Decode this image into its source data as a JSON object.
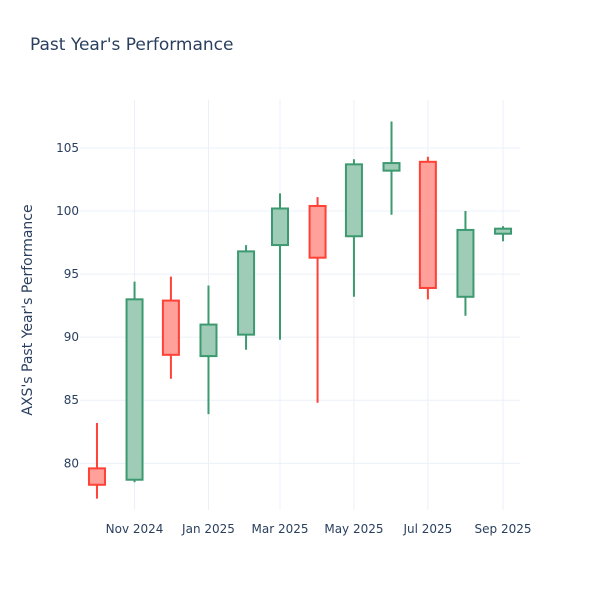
{
  "chart_data": {
    "type": "candlestick",
    "title": "Past Year's Performance",
    "xlabel": "",
    "ylabel": "AXS's Past Year's Performance",
    "ylim": [
      76.3,
      108.8
    ],
    "yticks": [
      80,
      85,
      90,
      95,
      100,
      105
    ],
    "xticks": [
      {
        "date": "2024-11-01",
        "label": "Nov 2024"
      },
      {
        "date": "2025-01-01",
        "label": "Jan 2025"
      },
      {
        "date": "2025-03-01",
        "label": "Mar 2025"
      },
      {
        "date": "2025-05-01",
        "label": "May 2025"
      },
      {
        "date": "2025-07-01",
        "label": "Jul 2025"
      },
      {
        "date": "2025-09-01",
        "label": "Sep 2025"
      }
    ],
    "xrange": [
      "2024-09-17",
      "2025-09-15"
    ],
    "grid": true,
    "increasing_color": "#3d9970",
    "decreasing_color": "#ff4136",
    "candles": [
      {
        "date": "2024-10-01",
        "open": 79.6,
        "high": 83.2,
        "low": 77.2,
        "close": 78.3
      },
      {
        "date": "2024-11-01",
        "open": 78.7,
        "high": 94.4,
        "low": 78.5,
        "close": 93.0
      },
      {
        "date": "2024-12-01",
        "open": 92.9,
        "high": 94.8,
        "low": 86.7,
        "close": 88.6
      },
      {
        "date": "2025-01-01",
        "open": 88.5,
        "high": 94.1,
        "low": 83.9,
        "close": 91.0
      },
      {
        "date": "2025-02-01",
        "open": 90.2,
        "high": 97.3,
        "low": 89.0,
        "close": 96.8
      },
      {
        "date": "2025-03-01",
        "open": 97.3,
        "high": 101.4,
        "low": 89.8,
        "close": 100.2
      },
      {
        "date": "2025-04-01",
        "open": 100.4,
        "high": 101.1,
        "low": 84.8,
        "close": 96.3
      },
      {
        "date": "2025-05-01",
        "open": 98.0,
        "high": 104.1,
        "low": 93.2,
        "close": 103.7
      },
      {
        "date": "2025-06-01",
        "open": 103.2,
        "high": 107.1,
        "low": 99.7,
        "close": 103.8
      },
      {
        "date": "2025-07-01",
        "open": 103.9,
        "high": 104.3,
        "low": 93.0,
        "close": 93.9
      },
      {
        "date": "2025-08-01",
        "open": 93.2,
        "high": 100.0,
        "low": 91.7,
        "close": 98.5
      },
      {
        "date": "2025-09-01",
        "open": 98.2,
        "high": 98.8,
        "low": 97.6,
        "close": 98.6
      }
    ]
  }
}
